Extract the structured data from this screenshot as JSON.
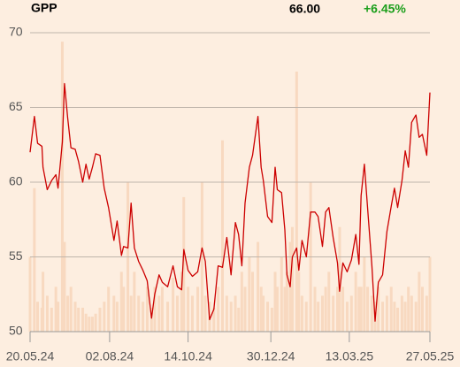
{
  "header": {
    "symbol": "GPP",
    "price": "66.00",
    "change": "+6.45%"
  },
  "chart_data": {
    "type": "line",
    "x": [
      "20.05.24",
      "24.05.24",
      "27.05.24",
      "31.05.24",
      "01.06.24",
      "05.06.24",
      "09.06.24",
      "13.06.24",
      "15.06.24",
      "19.06.24",
      "21.06.24",
      "24.06.24",
      "27.06.24",
      "01.07.24",
      "04.07.24",
      "08.07.24",
      "11.07.24",
      "14.07.24",
      "17.07.24",
      "20.07.24",
      "24.07.24",
      "28.07.24",
      "01.08.24",
      "06.08.24",
      "09.08.24",
      "13.08.24",
      "15.08.24",
      "19.08.24",
      "22.08.24",
      "25.08.24",
      "29.08.24",
      "02.09.24",
      "06.09.24",
      "10.09.24",
      "13.09.24",
      "17.09.24",
      "20.09.24",
      "25.09.24",
      "30.09.24",
      "04.10.24",
      "08.10.24",
      "10.10.24",
      "14.10.24",
      "18.10.24",
      "23.10.24",
      "27.10.24",
      "30.10.24",
      "03.11.24",
      "07.11.24",
      "11.11.24",
      "15.11.24",
      "19.11.24",
      "23.11.24",
      "27.11.24",
      "30.11.24",
      "03.12.24",
      "06.12.24",
      "10.12.24",
      "13.12.24",
      "18.12.24",
      "21.12.24",
      "23.12.24",
      "27.12.24",
      "31.12.24",
      "03.01.25",
      "05.01.25",
      "09.01.25",
      "12.01.25",
      "14.01.25",
      "17.01.25",
      "19.01.25",
      "23.01.25",
      "25.01.25",
      "28.01.25",
      "01.02.25",
      "05.02.25",
      "09.02.25",
      "12.02.25",
      "16.02.25",
      "19.02.25",
      "22.02.25",
      "26.02.25",
      "02.03.25",
      "04.03.25",
      "07.03.25",
      "11.03.25",
      "15.03.25",
      "19.03.25",
      "22.03.25",
      "24.03.25",
      "27.03.25",
      "30.03.25",
      "03.04.25",
      "06.04.25",
      "09.04.25",
      "13.04.25",
      "17.04.25",
      "21.04.25",
      "24.04.25",
      "27.04.25",
      "01.05.25",
      "04.05.25",
      "07.05.25",
      "10.05.25",
      "14.05.25",
      "17.05.25",
      "20.05.25",
      "24.05.25",
      "27.05.25"
    ],
    "series": [
      {
        "color": "#cc0000",
        "values": [
          62.0,
          64.4,
          62.6,
          62.4,
          61.0,
          59.5,
          60.1,
          60.5,
          59.6,
          62.7,
          66.6,
          64.3,
          62.3,
          62.2,
          61.4,
          60.0,
          61.2,
          60.2,
          61.0,
          61.9,
          61.8,
          59.6,
          58.3,
          56.1,
          57.4,
          55.1,
          55.7,
          55.6,
          58.6,
          55.6,
          54.7,
          54.1,
          53.4,
          50.9,
          52.5,
          53.8,
          53.3,
          53.0,
          54.4,
          53.0,
          52.8,
          55.5,
          54.1,
          53.7,
          54.0,
          55.6,
          54.7,
          50.8,
          51.5,
          54.4,
          54.3,
          56.3,
          53.8,
          57.3,
          56.5,
          54.4,
          58.6,
          61.0,
          61.8,
          64.4,
          61.0,
          60.1,
          57.7,
          57.3,
          61.0,
          59.5,
          59.3,
          56.8,
          53.8,
          53.0,
          55.0,
          55.6,
          54.1,
          56.1,
          55.0,
          58.0,
          58.0,
          57.7,
          55.7,
          58.0,
          58.3,
          56.3,
          54.6,
          52.7,
          54.6,
          54.0,
          54.8,
          56.5,
          54.5,
          59.1,
          61.2,
          58.3,
          54.4,
          50.7,
          53.3,
          53.8,
          56.7,
          58.4,
          59.6,
          58.3,
          60.1,
          62.1,
          61.0,
          64.0,
          64.5,
          63.0,
          63.2,
          61.8,
          66.0
        ]
      }
    ],
    "volume": {
      "color": "#f8d9c0",
      "values": [
        25,
        48,
        10,
        8,
        20,
        12,
        8,
        15,
        10,
        97,
        30,
        12,
        15,
        10,
        8,
        8,
        6,
        5,
        5,
        6,
        8,
        10,
        15,
        12,
        10,
        20,
        15,
        50,
        12,
        20,
        12,
        10,
        15,
        8,
        15,
        12,
        15,
        10,
        18,
        12,
        20,
        45,
        15,
        12,
        15,
        50,
        12,
        10,
        8,
        15,
        64,
        12,
        10,
        12,
        8,
        20,
        15,
        25,
        20,
        30,
        15,
        12,
        10,
        8,
        20,
        15,
        25,
        15,
        20,
        30,
        35,
        87,
        20,
        12,
        10,
        50,
        15,
        10,
        12,
        15,
        20,
        12,
        15,
        35,
        15,
        10,
        12,
        20,
        15,
        15,
        25,
        15,
        12,
        10,
        15,
        10,
        12,
        15,
        10,
        8,
        12,
        10,
        15,
        12,
        10,
        20,
        15,
        12,
        25
      ]
    },
    "xlim": [
      "20.05.24",
      "27.05.25"
    ],
    "xticks": [
      "20.05.24",
      "02.08.24",
      "14.10.24",
      "30.12.24",
      "13.03.25",
      "27.05.25"
    ],
    "ylim": [
      50,
      70
    ],
    "yticks": [
      50,
      55,
      60,
      65,
      70
    ],
    "grid": true
  }
}
